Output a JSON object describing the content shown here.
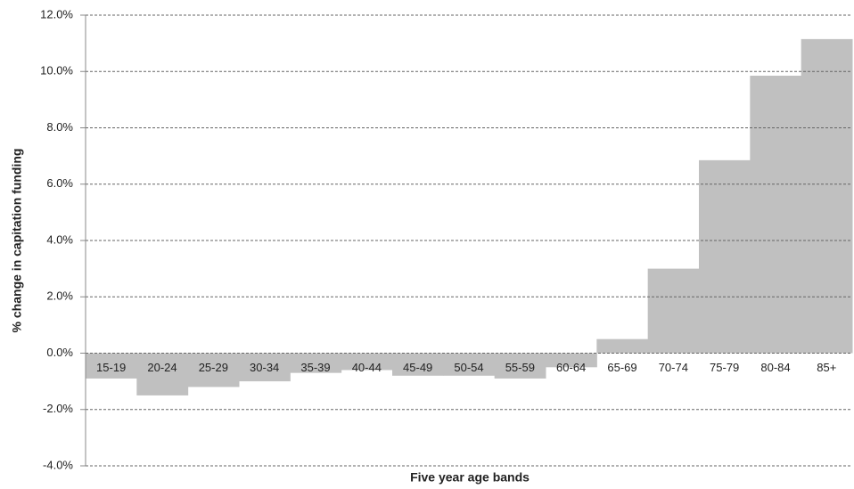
{
  "chart_data": {
    "type": "bar",
    "x_label": "Five year age bands",
    "y_label": "% change in capitation funding",
    "categories": [
      "15-19",
      "20-24",
      "25-29",
      "30-34",
      "35-39",
      "40-44",
      "45-49",
      "50-54",
      "55-59",
      "60-64",
      "65-69",
      "70-74",
      "75-79",
      "80-84",
      "85+"
    ],
    "values": [
      -0.9,
      -1.5,
      -1.2,
      -1.0,
      -0.7,
      -0.6,
      -0.8,
      -0.8,
      -0.9,
      -0.5,
      0.5,
      3.0,
      6.85,
      9.85,
      11.15
    ],
    "color": "#c0c0c0",
    "ylim": [
      -4,
      12
    ],
    "yticks": [
      {
        "value": -4,
        "label": "-4.0%"
      },
      {
        "value": -2,
        "label": "-2.0%"
      },
      {
        "value": 0,
        "label": "0.0%"
      },
      {
        "value": 2,
        "label": "2.0%"
      },
      {
        "value": 4,
        "label": "4.0%"
      },
      {
        "value": 6,
        "label": "6.0%"
      },
      {
        "value": 8,
        "label": "8.0%"
      },
      {
        "value": 10,
        "label": "10.0%"
      },
      {
        "value": 12,
        "label": "12.0%"
      }
    ],
    "grid": true
  }
}
